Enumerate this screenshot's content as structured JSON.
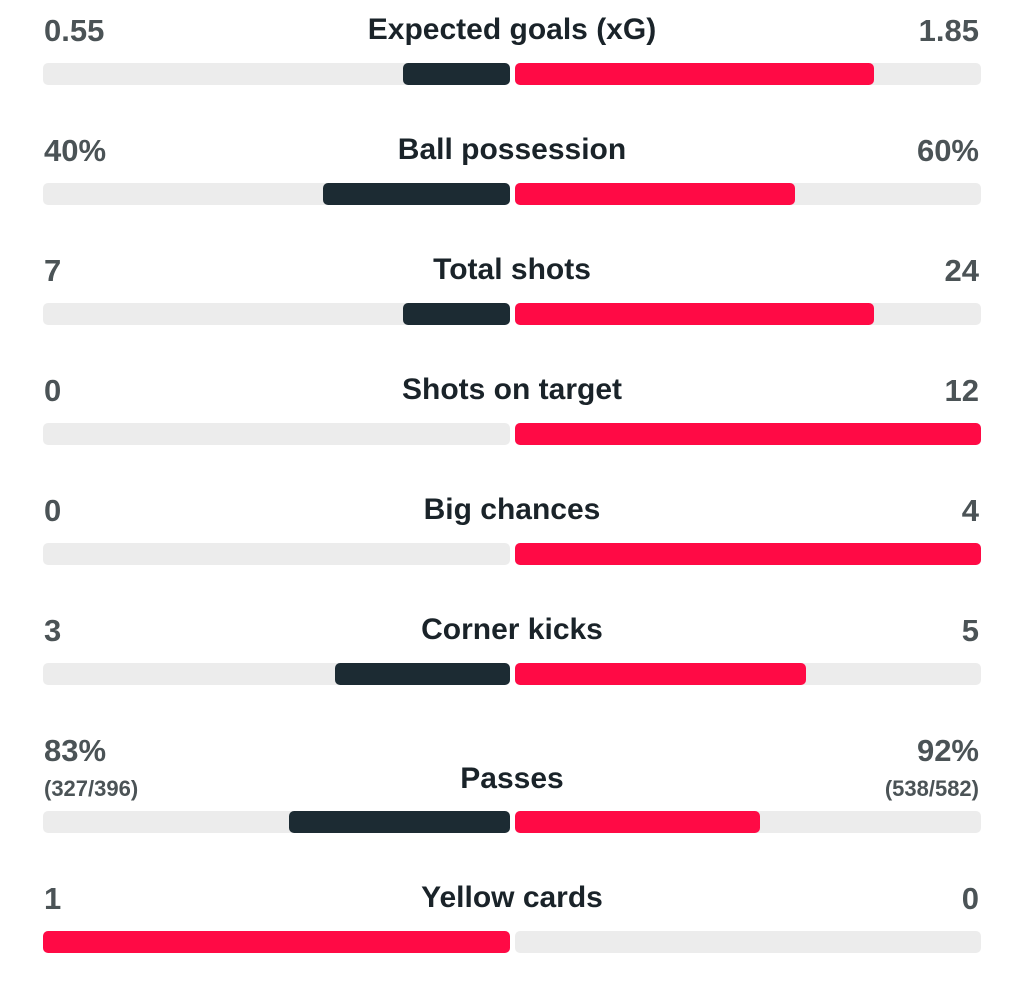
{
  "colors": {
    "home_bar": "#1c2b33",
    "away_bar": "#ff0a45",
    "winner_bar": "#ff0a45",
    "track": "#ececec"
  },
  "stats": [
    {
      "label": "Expected goals (xG)",
      "home": "0.55",
      "away": "1.85",
      "home_fill": 0.23,
      "away_fill": 0.77,
      "highlight": "away"
    },
    {
      "label": "Ball possession",
      "home": "40%",
      "away": "60%",
      "home_fill": 0.4,
      "away_fill": 0.6,
      "highlight": "away"
    },
    {
      "label": "Total shots",
      "home": "7",
      "away": "24",
      "home_fill": 0.23,
      "away_fill": 0.77,
      "highlight": "away"
    },
    {
      "label": "Shots on target",
      "home": "0",
      "away": "12",
      "home_fill": 0.0,
      "away_fill": 1.0,
      "highlight": "away"
    },
    {
      "label": "Big chances",
      "home": "0",
      "away": "4",
      "home_fill": 0.0,
      "away_fill": 1.0,
      "highlight": "away"
    },
    {
      "label": "Corner kicks",
      "home": "3",
      "away": "5",
      "home_fill": 0.375,
      "away_fill": 0.625,
      "highlight": "away"
    },
    {
      "label": "Passes",
      "home": "83%",
      "away": "92%",
      "home_sub": "(327/396)",
      "away_sub": "(538/582)",
      "home_fill": 0.474,
      "away_fill": 0.526,
      "highlight": "away"
    },
    {
      "label": "Yellow cards",
      "home": "1",
      "away": "0",
      "home_fill": 1.0,
      "away_fill": 0.0,
      "highlight": "home"
    }
  ]
}
